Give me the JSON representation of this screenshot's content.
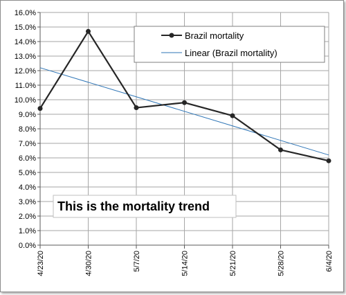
{
  "chart_data": {
    "type": "line",
    "title": "",
    "xlabel": "",
    "ylabel": "",
    "categories": [
      "4/23/20",
      "4/30/20",
      "5/7/20",
      "5/14/20",
      "5/21/20",
      "5/28/20",
      "6/4/20"
    ],
    "ylim": [
      0,
      16
    ],
    "ytick_step": 1,
    "ytick_format": "percent_1dp",
    "grid": true,
    "legend_position": "top-right",
    "series": [
      {
        "name": "Brazil mortality",
        "values": [
          9.4,
          14.7,
          9.45,
          9.8,
          8.9,
          6.55,
          5.8
        ],
        "color": "#262626",
        "marker": "circle"
      },
      {
        "name": "Linear (Brazil mortality)",
        "trendline_of": "Brazil mortality",
        "start_value": 12.2,
        "end_value": 6.2,
        "color": "#2e75b6"
      }
    ],
    "annotation": "This is the mortality trend"
  }
}
